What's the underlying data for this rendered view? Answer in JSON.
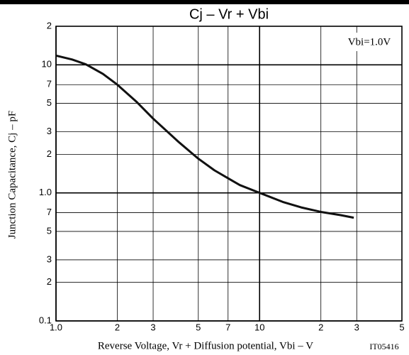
{
  "chart_data": {
    "type": "line",
    "title": "Cj  –  Vr + Vbi",
    "x_label": "Reverse Voltage, Vr + Diffusion potential,  Vbi  –  V",
    "y_label": "Junction Capacitance,  Cj  –  pF",
    "annotation": "Vbi=1.0V",
    "code": "IT05416",
    "x": [
      1,
      1.2,
      1.4,
      1.7,
      2,
      2.5,
      3,
      4,
      5,
      6,
      7,
      8,
      10,
      13,
      16,
      20,
      25,
      29
    ],
    "series": [
      {
        "name": "Cj",
        "color": "#111111",
        "values": [
          11.8,
          11,
          10.1,
          8.5,
          7,
          5.1,
          3.8,
          2.5,
          1.85,
          1.5,
          1.3,
          1.15,
          1.0,
          0.85,
          0.77,
          0.71,
          0.67,
          0.64
        ]
      }
    ],
    "xlim": [
      1,
      50
    ],
    "ylim": [
      0.1,
      20
    ],
    "xticks": [
      {
        "value": 1,
        "label": "1.0"
      },
      2,
      3,
      5,
      7,
      10,
      {
        "value": 20,
        "label": "2"
      },
      {
        "value": 30,
        "label": "3"
      },
      {
        "value": 50,
        "label": "5"
      }
    ],
    "yticks": [
      0.1,
      {
        "value": 0.2,
        "label": "2"
      },
      {
        "value": 0.3,
        "label": "3"
      },
      {
        "value": 0.5,
        "label": "5"
      },
      {
        "value": 0.7,
        "label": "7"
      },
      {
        "value": 1,
        "label": "1.0"
      },
      2,
      3,
      5,
      7,
      10,
      {
        "value": 20,
        "label": "2"
      }
    ],
    "log_x": true,
    "log_y": true,
    "grid": true
  }
}
